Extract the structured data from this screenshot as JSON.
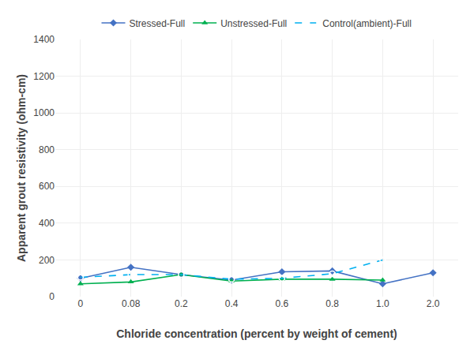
{
  "chart_data": {
    "type": "line",
    "xlabel": "Chloride concentration (percent by weight of cement)",
    "ylabel": "Apparent grout resistivity (ohm-cm)",
    "categories": [
      "0",
      "0.08",
      "0.2",
      "0.4",
      "0.6",
      "0.8",
      "1.0",
      "2.0"
    ],
    "series": [
      {
        "name": "Stressed-Full",
        "color": "#4472C4",
        "marker": "diamond",
        "line_style": "solid",
        "values": [
          100,
          160,
          120,
          90,
          135,
          140,
          70,
          130
        ]
      },
      {
        "name": "Unstressed-Full",
        "color": "#00B050",
        "marker": "triangle-up",
        "line_style": "solid",
        "values": [
          70,
          80,
          120,
          85,
          95,
          95,
          90,
          null
        ]
      },
      {
        "name": "Control(ambient)-Full",
        "color": "#00B0F0",
        "marker": "circle-open",
        "line_style": "dashed",
        "values": [
          105,
          120,
          120,
          95,
          100,
          125,
          200,
          null
        ]
      }
    ],
    "ylim": [
      0,
      1400
    ],
    "yticks": [
      0,
      200,
      400,
      600,
      800,
      1000,
      1200,
      1400
    ],
    "grid": true,
    "legend": "top"
  }
}
